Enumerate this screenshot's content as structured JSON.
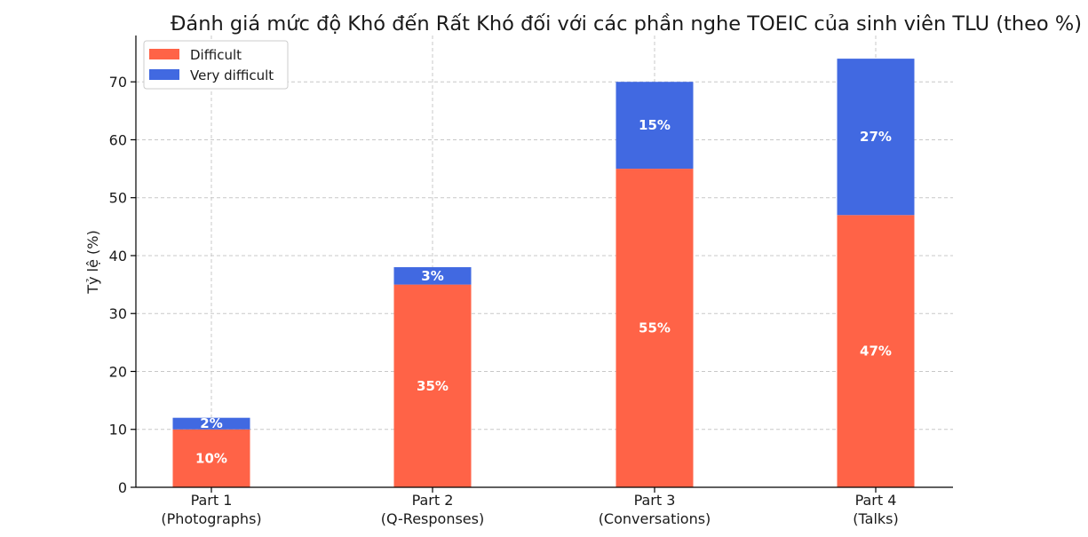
{
  "chart_data": {
    "type": "bar",
    "stacked": true,
    "title": "Đánh giá mức độ Khó đến Rất Khó đối với các phần nghe TOEIC của sinh viên TLU (theo %)",
    "ylabel": "Tỷ lệ (%)",
    "xlabel": "",
    "categories": [
      [
        "Part 1",
        "(Photographs)"
      ],
      [
        "Part 2",
        "(Q-Responses)"
      ],
      [
        "Part 3",
        "(Conversations)"
      ],
      [
        "Part 4",
        "(Talks)"
      ]
    ],
    "series": [
      {
        "name": "Difficult",
        "color": "#FF6347",
        "values": [
          10,
          35,
          55,
          47
        ],
        "labels": [
          "10%",
          "35%",
          "55%",
          "47%"
        ]
      },
      {
        "name": "Very difficult",
        "color": "#4169E1",
        "values": [
          2,
          3,
          15,
          27
        ],
        "labels": [
          "2%",
          "3%",
          "15%",
          "27%"
        ]
      }
    ],
    "ylim": [
      0,
      78
    ],
    "yticks": [
      0,
      10,
      20,
      30,
      40,
      50,
      60,
      70
    ],
    "grid": true,
    "legend_position": "top-left"
  }
}
